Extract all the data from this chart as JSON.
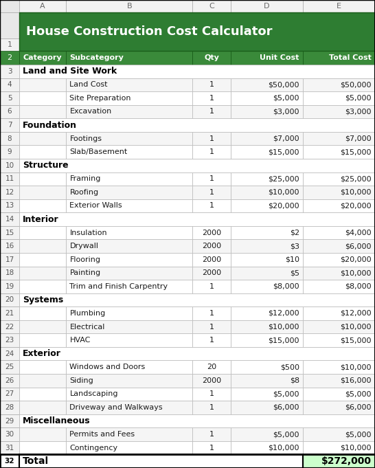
{
  "title": "House Construction Cost Calculator",
  "header_bg": "#2e7d32",
  "header_text_color": "#ffffff",
  "col_header_bg": "#3a8a3a",
  "col_header_text_color": "#ffffff",
  "total_bg": "#ccffcc",
  "border_color": "#c0c0c0",
  "thick_border": "#000000",
  "col_letters": [
    "A",
    "B",
    "C",
    "D",
    "E"
  ],
  "col_headers": [
    "Category",
    "Subcategory",
    "Qty",
    "Unit Cost",
    "Total Cost"
  ],
  "rows": [
    {
      "row_num": 3,
      "col_a": "Land and Site Work",
      "col_b": "",
      "col_c": "",
      "col_d": "",
      "col_e": "",
      "is_category": true,
      "is_total": false
    },
    {
      "row_num": 4,
      "col_a": "",
      "col_b": "Land Cost",
      "col_c": "1",
      "col_d": "$50,000",
      "col_e": "$50,000",
      "is_category": false,
      "is_total": false
    },
    {
      "row_num": 5,
      "col_a": "",
      "col_b": "Site Preparation",
      "col_c": "1",
      "col_d": "$5,000",
      "col_e": "$5,000",
      "is_category": false,
      "is_total": false
    },
    {
      "row_num": 6,
      "col_a": "",
      "col_b": "Excavation",
      "col_c": "1",
      "col_d": "$3,000",
      "col_e": "$3,000",
      "is_category": false,
      "is_total": false
    },
    {
      "row_num": 7,
      "col_a": "Foundation",
      "col_b": "",
      "col_c": "",
      "col_d": "",
      "col_e": "",
      "is_category": true,
      "is_total": false
    },
    {
      "row_num": 8,
      "col_a": "",
      "col_b": "Footings",
      "col_c": "1",
      "col_d": "$7,000",
      "col_e": "$7,000",
      "is_category": false,
      "is_total": false
    },
    {
      "row_num": 9,
      "col_a": "",
      "col_b": "Slab/Basement",
      "col_c": "1",
      "col_d": "$15,000",
      "col_e": "$15,000",
      "is_category": false,
      "is_total": false
    },
    {
      "row_num": 10,
      "col_a": "Structure",
      "col_b": "",
      "col_c": "",
      "col_d": "",
      "col_e": "",
      "is_category": true,
      "is_total": false
    },
    {
      "row_num": 11,
      "col_a": "",
      "col_b": "Framing",
      "col_c": "1",
      "col_d": "$25,000",
      "col_e": "$25,000",
      "is_category": false,
      "is_total": false
    },
    {
      "row_num": 12,
      "col_a": "",
      "col_b": "Roofing",
      "col_c": "1",
      "col_d": "$10,000",
      "col_e": "$10,000",
      "is_category": false,
      "is_total": false
    },
    {
      "row_num": 13,
      "col_a": "",
      "col_b": "Exterior Walls",
      "col_c": "1",
      "col_d": "$20,000",
      "col_e": "$20,000",
      "is_category": false,
      "is_total": false
    },
    {
      "row_num": 14,
      "col_a": "Interior",
      "col_b": "",
      "col_c": "",
      "col_d": "",
      "col_e": "",
      "is_category": true,
      "is_total": false
    },
    {
      "row_num": 15,
      "col_a": "",
      "col_b": "Insulation",
      "col_c": "2000",
      "col_d": "$2",
      "col_e": "$4,000",
      "is_category": false,
      "is_total": false
    },
    {
      "row_num": 16,
      "col_a": "",
      "col_b": "Drywall",
      "col_c": "2000",
      "col_d": "$3",
      "col_e": "$6,000",
      "is_category": false,
      "is_total": false
    },
    {
      "row_num": 17,
      "col_a": "",
      "col_b": "Flooring",
      "col_c": "2000",
      "col_d": "$10",
      "col_e": "$20,000",
      "is_category": false,
      "is_total": false
    },
    {
      "row_num": 18,
      "col_a": "",
      "col_b": "Painting",
      "col_c": "2000",
      "col_d": "$5",
      "col_e": "$10,000",
      "is_category": false,
      "is_total": false
    },
    {
      "row_num": 19,
      "col_a": "",
      "col_b": "Trim and Finish Carpentry",
      "col_c": "1",
      "col_d": "$8,000",
      "col_e": "$8,000",
      "is_category": false,
      "is_total": false
    },
    {
      "row_num": 20,
      "col_a": "Systems",
      "col_b": "",
      "col_c": "",
      "col_d": "",
      "col_e": "",
      "is_category": true,
      "is_total": false
    },
    {
      "row_num": 21,
      "col_a": "",
      "col_b": "Plumbing",
      "col_c": "1",
      "col_d": "$12,000",
      "col_e": "$12,000",
      "is_category": false,
      "is_total": false
    },
    {
      "row_num": 22,
      "col_a": "",
      "col_b": "Electrical",
      "col_c": "1",
      "col_d": "$10,000",
      "col_e": "$10,000",
      "is_category": false,
      "is_total": false
    },
    {
      "row_num": 23,
      "col_a": "",
      "col_b": "HVAC",
      "col_c": "1",
      "col_d": "$15,000",
      "col_e": "$15,000",
      "is_category": false,
      "is_total": false
    },
    {
      "row_num": 24,
      "col_a": "Exterior",
      "col_b": "",
      "col_c": "",
      "col_d": "",
      "col_e": "",
      "is_category": true,
      "is_total": false
    },
    {
      "row_num": 25,
      "col_a": "",
      "col_b": "Windows and Doors",
      "col_c": "20",
      "col_d": "$500",
      "col_e": "$10,000",
      "is_category": false,
      "is_total": false
    },
    {
      "row_num": 26,
      "col_a": "",
      "col_b": "Siding",
      "col_c": "2000",
      "col_d": "$8",
      "col_e": "$16,000",
      "is_category": false,
      "is_total": false
    },
    {
      "row_num": 27,
      "col_a": "",
      "col_b": "Landscaping",
      "col_c": "1",
      "col_d": "$5,000",
      "col_e": "$5,000",
      "is_category": false,
      "is_total": false
    },
    {
      "row_num": 28,
      "col_a": "",
      "col_b": "Driveway and Walkways",
      "col_c": "1",
      "col_d": "$6,000",
      "col_e": "$6,000",
      "is_category": false,
      "is_total": false
    },
    {
      "row_num": 29,
      "col_a": "Miscellaneous",
      "col_b": "",
      "col_c": "",
      "col_d": "",
      "col_e": "",
      "is_category": true,
      "is_total": false
    },
    {
      "row_num": 30,
      "col_a": "",
      "col_b": "Permits and Fees",
      "col_c": "1",
      "col_d": "$5,000",
      "col_e": "$5,000",
      "is_category": false,
      "is_total": false
    },
    {
      "row_num": 31,
      "col_a": "",
      "col_b": "Contingency",
      "col_c": "1",
      "col_d": "$10,000",
      "col_e": "$10,000",
      "is_category": false,
      "is_total": false
    },
    {
      "row_num": 32,
      "col_a": "Total",
      "col_b": "",
      "col_c": "",
      "col_d": "",
      "col_e": "$272,000",
      "is_category": false,
      "is_total": true
    }
  ],
  "figsize": [
    5.46,
    6.81
  ],
  "dpi": 100
}
